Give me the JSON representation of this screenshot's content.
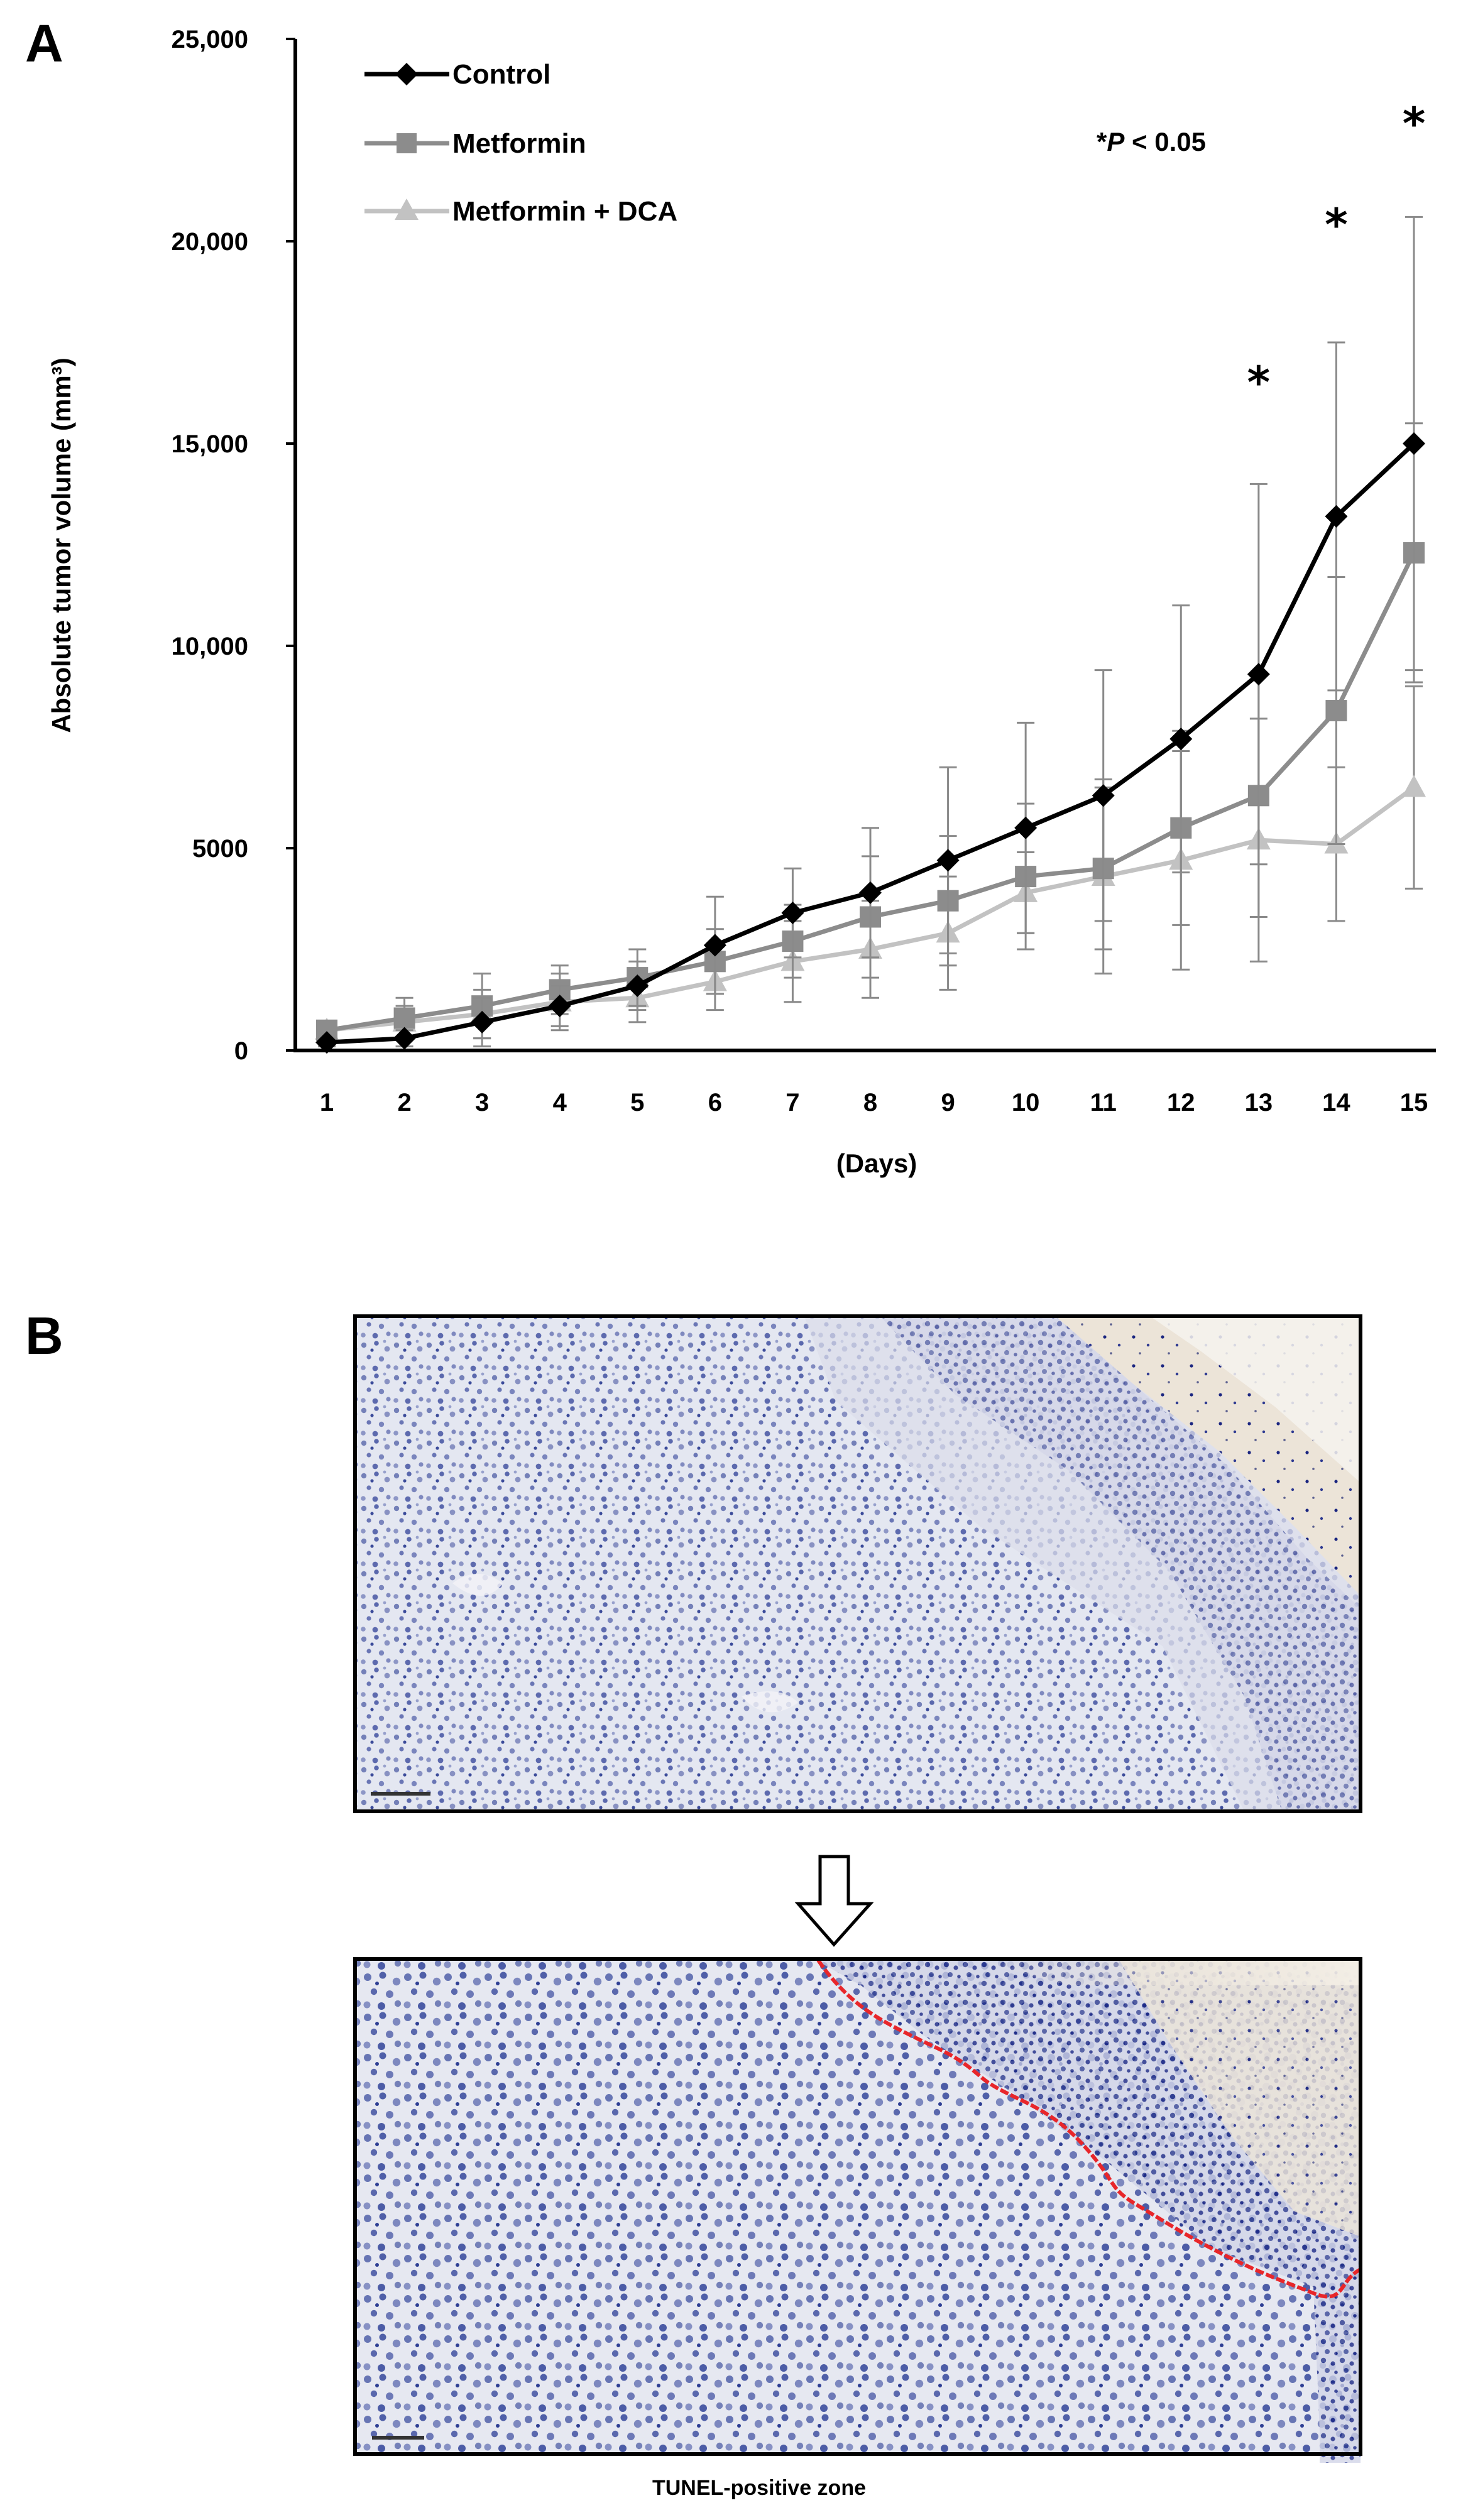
{
  "panels": {
    "a": "A",
    "b": "B"
  },
  "colors": {
    "control": "#000000",
    "metformin": "#8c8c8c",
    "metformin_dca": "#c2c2c2",
    "tissue_bg": "#dfe3f0",
    "nuclei": "#3b4b9a",
    "dense_nuclei": "#0d1b7e",
    "necrotic": "#e8dccb",
    "boundary": "#e8262a"
  },
  "chart_data": {
    "type": "line",
    "title": "",
    "xlabel": "(Days)",
    "ylabel": "Absolute tumor volume (mm³)",
    "x": [
      1,
      2,
      3,
      4,
      5,
      6,
      7,
      8,
      9,
      10,
      11,
      12,
      13,
      14,
      15
    ],
    "ylim": [
      0,
      25000
    ],
    "yticks": [
      0,
      5000,
      10000,
      15000,
      20000,
      25000
    ],
    "ytick_labels": [
      "0",
      "5000",
      "10,000",
      "15,000",
      "20,000",
      "25,000"
    ],
    "grid": false,
    "legend_position": "top-left",
    "series": [
      {
        "name": "Control",
        "marker": "diamond",
        "values": [
          200,
          300,
          700,
          1100,
          1600,
          2600,
          3400,
          3900,
          4700,
          5500,
          6300,
          7700,
          9300,
          13200,
          15000
        ],
        "error": [
          100,
          200,
          600,
          500,
          600,
          1200,
          1100,
          1600,
          2300,
          2600,
          3100,
          3300,
          4700,
          4300,
          5600
        ]
      },
      {
        "name": "Metformin",
        "marker": "square",
        "values": [
          500,
          800,
          1100,
          1500,
          1800,
          2200,
          2700,
          3300,
          3700,
          4300,
          4500,
          5500,
          6300,
          8400,
          12300
        ],
        "error": [
          200,
          500,
          800,
          600,
          700,
          800,
          900,
          1500,
          1600,
          1800,
          2000,
          2400,
          3000,
          3300,
          3200
        ]
      },
      {
        "name": "Metformin + DCA",
        "marker": "triangle",
        "values": [
          500,
          700,
          900,
          1200,
          1300,
          1700,
          2200,
          2500,
          2900,
          3900,
          4300,
          4700,
          5200,
          5100,
          6500
        ],
        "error": [
          200,
          400,
          600,
          700,
          600,
          700,
          1000,
          1200,
          1400,
          1000,
          2400,
          2700,
          3000,
          1900,
          2500
        ]
      }
    ],
    "annotations": {
      "pvalue_prefix": "*",
      "pvalue_p": "P",
      "pvalue_rest": " < 0.05",
      "star_symbol": "*",
      "significant_days": [
        13,
        14,
        15
      ],
      "star_values": [
        16600,
        20500,
        23000
      ]
    }
  },
  "micrographs": {
    "caption": "TUNEL-positive zone"
  }
}
